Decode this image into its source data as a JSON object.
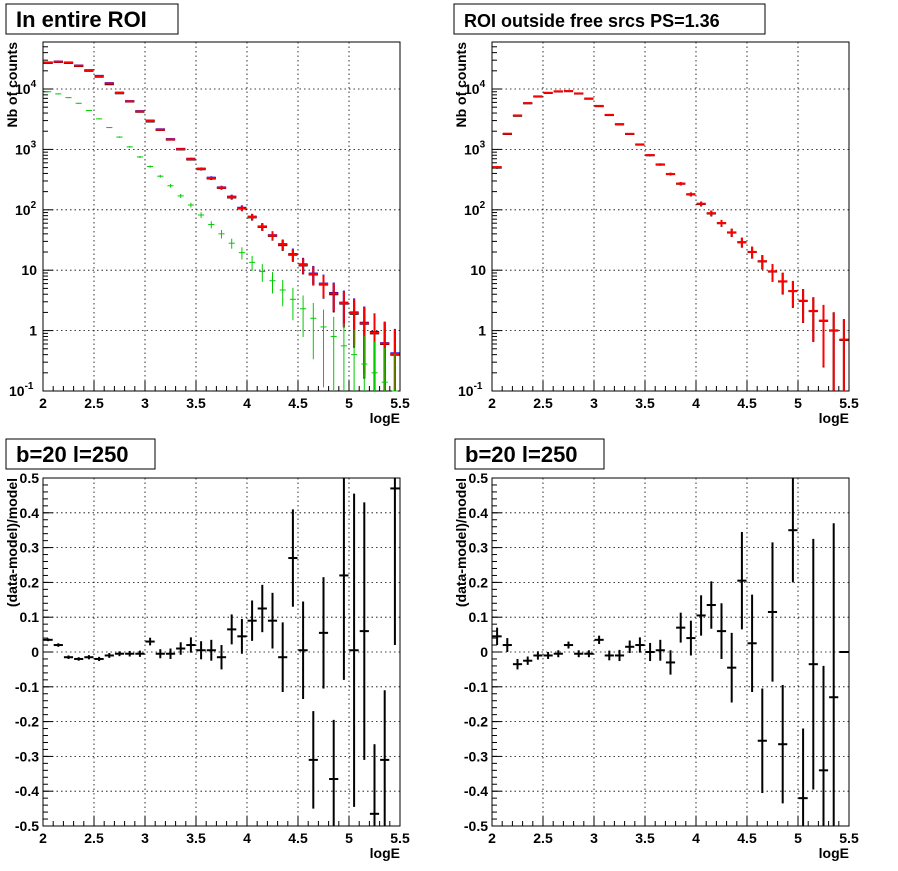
{
  "chart_data": [
    {
      "type": "scatter",
      "title": "In entire ROI",
      "xlabel": "logE",
      "ylabel": "Nb of counts",
      "xlim": [
        2,
        5.5
      ],
      "ylim": [
        0.1,
        60000
      ],
      "yscale": "log",
      "grid": true,
      "x_ticks": [
        "2",
        "2.5",
        "3",
        "3.5",
        "4",
        "4.5",
        "5",
        "5.5"
      ],
      "y_ticks": [
        {
          "base": "10",
          "exp": "-1"
        },
        {
          "base": "1",
          "exp": ""
        },
        {
          "base": "10",
          "exp": ""
        },
        {
          "base": "10",
          "exp": "2"
        },
        {
          "base": "10",
          "exp": "3"
        },
        {
          "base": "10",
          "exp": "4"
        }
      ],
      "series": [
        {
          "color": "#000000",
          "x": [
            2.05,
            2.15,
            2.25,
            2.35,
            2.45,
            2.55,
            2.65,
            2.75,
            2.85,
            2.95,
            3.05,
            3.15,
            3.25,
            3.35,
            3.45,
            3.55,
            3.65,
            3.75,
            3.85,
            3.95,
            4.05,
            4.15,
            4.25,
            4.35,
            4.45,
            4.55,
            4.65,
            4.75,
            4.85,
            4.95,
            5.05,
            5.15,
            5.25,
            5.35,
            5.45
          ],
          "y": [
            27000,
            28000,
            27000,
            24000,
            20000,
            16000,
            12000,
            8500,
            6200,
            4200,
            2900,
            2100,
            1450,
            1000,
            680,
            470,
            330,
            230,
            160,
            105,
            75,
            52,
            37,
            26,
            18,
            12,
            8.5,
            5.8,
            4,
            2.8,
            1.9,
            1.3,
            0.9,
            0.6,
            0.4
          ]
        },
        {
          "color": "#0000ff",
          "x": [
            2.05,
            2.15,
            2.25,
            2.35,
            2.45,
            2.55,
            2.65,
            2.75,
            2.85,
            2.95,
            3.05,
            3.15,
            3.25,
            3.35,
            3.45,
            3.55,
            3.65,
            3.75,
            3.85,
            3.95,
            4.05,
            4.15,
            4.25,
            4.35,
            4.45,
            4.55,
            4.65,
            4.75,
            4.85,
            4.95,
            5.05,
            5.15,
            5.25,
            5.35,
            5.45
          ],
          "y": [
            27500,
            28500,
            27500,
            24500,
            20500,
            16500,
            12500,
            8700,
            6300,
            4300,
            3000,
            2150,
            1480,
            1020,
            700,
            480,
            340,
            235,
            165,
            108,
            77,
            53,
            38,
            27,
            18.5,
            12.5,
            8.8,
            6,
            4.2,
            2.9,
            2,
            1.35,
            0.95,
            0.62,
            0.42
          ]
        },
        {
          "color": "#ff0000",
          "x": [
            2.05,
            2.15,
            2.25,
            2.35,
            2.45,
            2.55,
            2.65,
            2.75,
            2.85,
            2.95,
            3.05,
            3.15,
            3.25,
            3.35,
            3.45,
            3.55,
            3.65,
            3.75,
            3.85,
            3.95,
            4.05,
            4.15,
            4.25,
            4.35,
            4.45,
            4.55,
            4.65,
            4.75,
            4.85,
            4.95,
            5.05,
            5.15,
            5.25,
            5.35,
            5.45
          ],
          "y": [
            27300,
            28300,
            27300,
            24300,
            20300,
            16300,
            12300,
            8600,
            6250,
            4250,
            2950,
            2120,
            1460,
            1010,
            690,
            475,
            335,
            232,
            162,
            106,
            76,
            52.5,
            37.5,
            26.5,
            18.2,
            12.2,
            8.6,
            5.9,
            4.1,
            2.85,
            1.95,
            1.32,
            0.92,
            0.61,
            0.41
          ]
        },
        {
          "color": "#00cc00",
          "x": [
            2.05,
            2.15,
            2.25,
            2.35,
            2.45,
            2.55,
            2.65,
            2.75,
            2.85,
            2.95,
            3.05,
            3.15,
            3.25,
            3.35,
            3.45,
            3.55,
            3.65,
            3.75,
            3.85,
            3.95,
            4.05,
            4.15,
            4.25,
            4.35,
            4.45,
            4.55,
            4.65,
            4.75,
            4.85,
            4.95,
            5.05,
            5.15,
            5.25,
            5.35,
            5.45
          ],
          "y": [
            9000,
            8300,
            7200,
            5800,
            4400,
            3200,
            2300,
            1600,
            1100,
            750,
            520,
            360,
            250,
            170,
            120,
            82,
            57,
            40,
            28,
            19.5,
            13.5,
            9.5,
            6.7,
            4.7,
            3.3,
            2.3,
            1.6,
            1.15,
            0.8,
            0.56,
            0.4,
            0.28,
            0.2,
            0.14,
            0.1
          ]
        }
      ]
    },
    {
      "type": "scatter",
      "title": "ROI outside free srcs PS=1.36",
      "xlabel": "logE",
      "ylabel": "Nb of counts",
      "xlim": [
        2,
        5.5
      ],
      "ylim": [
        0.1,
        60000
      ],
      "yscale": "log",
      "grid": true,
      "x_ticks": [
        "2",
        "2.5",
        "3",
        "3.5",
        "4",
        "4.5",
        "5",
        "5.5"
      ],
      "y_ticks": [
        {
          "base": "10",
          "exp": "-1"
        },
        {
          "base": "1",
          "exp": ""
        },
        {
          "base": "10",
          "exp": ""
        },
        {
          "base": "10",
          "exp": "2"
        },
        {
          "base": "10",
          "exp": "3"
        },
        {
          "base": "10",
          "exp": "4"
        }
      ],
      "series": [
        {
          "color": "#000000",
          "x": [
            2.05,
            2.15,
            2.25,
            2.35,
            2.45,
            2.55,
            2.65,
            2.75,
            2.85,
            2.95,
            3.05,
            3.15,
            3.25,
            3.35,
            3.45,
            3.55,
            3.65,
            3.75,
            3.85,
            3.95,
            4.05,
            4.15,
            4.25,
            4.35,
            4.45,
            4.55,
            4.65,
            4.75,
            4.85,
            4.95,
            5.05,
            5.15,
            5.25,
            5.35,
            5.45
          ],
          "y": [
            500,
            1800,
            3600,
            5800,
            7500,
            8600,
            9100,
            9200,
            8400,
            6900,
            5200,
            3700,
            2600,
            1800,
            1200,
            800,
            560,
            390,
            270,
            180,
            125,
            87,
            60,
            42,
            29,
            20,
            14,
            9.5,
            6.5,
            4.5,
            3.1,
            2.1,
            1.45,
            1,
            0.7
          ]
        },
        {
          "color": "#ff0000",
          "x": [
            2.05,
            2.15,
            2.25,
            2.35,
            2.45,
            2.55,
            2.65,
            2.75,
            2.85,
            2.95,
            3.05,
            3.15,
            3.25,
            3.35,
            3.45,
            3.55,
            3.65,
            3.75,
            3.85,
            3.95,
            4.05,
            4.15,
            4.25,
            4.35,
            4.45,
            4.55,
            4.65,
            4.75,
            4.85,
            4.95,
            5.05,
            5.15,
            5.25,
            5.35,
            5.45
          ],
          "y": [
            510,
            1820,
            3650,
            5850,
            7550,
            8650,
            9150,
            9250,
            8450,
            6950,
            5250,
            3730,
            2620,
            1810,
            1210,
            805,
            565,
            392,
            272,
            181,
            126,
            88,
            60.5,
            42.3,
            29.2,
            20.1,
            14.1,
            9.6,
            6.55,
            4.52,
            3.12,
            2.12,
            1.46,
            1.01,
            0.71
          ]
        }
      ]
    },
    {
      "type": "scatter",
      "title": "b=20 l=250",
      "xlabel": "logE",
      "ylabel": "(data-model)/model",
      "xlim": [
        2,
        5.5
      ],
      "ylim": [
        -0.5,
        0.5
      ],
      "grid": true,
      "x_ticks": [
        "2",
        "2.5",
        "3",
        "3.5",
        "4",
        "4.5",
        "5",
        "5.5"
      ],
      "y_ticks": [
        "-0.5",
        "-0.4",
        "-0.3",
        "-0.2",
        "-0.1",
        "0",
        "0.1",
        "0.2",
        "0.3",
        "0.4",
        "0.5"
      ],
      "series": [
        {
          "color": "#000000",
          "x": [
            2.05,
            2.15,
            2.25,
            2.35,
            2.45,
            2.55,
            2.65,
            2.75,
            2.85,
            2.95,
            3.05,
            3.15,
            3.25,
            3.35,
            3.45,
            3.55,
            3.65,
            3.75,
            3.85,
            3.95,
            4.05,
            4.15,
            4.25,
            4.35,
            4.45,
            4.55,
            4.65,
            4.75,
            4.85,
            4.95,
            5.05,
            5.15,
            5.25,
            5.35,
            5.45
          ],
          "y": [
            0.035,
            0.02,
            -0.015,
            -0.02,
            -0.015,
            -0.02,
            -0.01,
            -0.005,
            -0.005,
            -0.005,
            0.03,
            -0.005,
            -0.005,
            0.01,
            0.02,
            0.005,
            0.005,
            -0.015,
            0.065,
            0.045,
            0.09,
            0.125,
            0.09,
            -0.015,
            0.27,
            0.005,
            -0.31,
            0.055,
            -0.365,
            0.22,
            0.005,
            0.06,
            -0.465,
            -0.31,
            0.47
          ],
          "err": [
            0.004,
            0.005,
            0.005,
            0.005,
            0.006,
            0.006,
            0.007,
            0.007,
            0.008,
            0.009,
            0.011,
            0.013,
            0.015,
            0.018,
            0.022,
            0.026,
            0.03,
            0.035,
            0.043,
            0.05,
            0.058,
            0.068,
            0.08,
            0.1,
            0.14,
            0.14,
            0.14,
            0.16,
            0.17,
            0.3,
            0.45,
            0.37,
            0.2,
            0.2,
            0.45
          ]
        }
      ]
    },
    {
      "type": "scatter",
      "title": "b=20 l=250",
      "xlabel": "logE",
      "ylabel": "(data-model)/model",
      "xlim": [
        2,
        5.5
      ],
      "ylim": [
        -0.5,
        0.5
      ],
      "grid": true,
      "x_ticks": [
        "2",
        "2.5",
        "3",
        "3.5",
        "4",
        "4.5",
        "5",
        "5.5"
      ],
      "y_ticks": [
        "-0.5",
        "-0.4",
        "-0.3",
        "-0.2",
        "-0.1",
        "0",
        "0.1",
        "0.2",
        "0.3",
        "0.4",
        "0.5"
      ],
      "series": [
        {
          "color": "#000000",
          "x": [
            2.05,
            2.15,
            2.25,
            2.35,
            2.45,
            2.55,
            2.65,
            2.75,
            2.85,
            2.95,
            3.05,
            3.15,
            3.25,
            3.35,
            3.45,
            3.55,
            3.65,
            3.75,
            3.85,
            3.95,
            4.05,
            4.15,
            4.25,
            4.35,
            4.45,
            4.55,
            4.65,
            4.75,
            4.85,
            4.95,
            5.05,
            5.15,
            5.25,
            5.35,
            5.45
          ],
          "y": [
            0.045,
            0.02,
            -0.035,
            -0.025,
            -0.01,
            -0.01,
            -0.005,
            0.02,
            -0.005,
            -0.005,
            0.035,
            -0.01,
            -0.01,
            0.015,
            0.02,
            0.0,
            0.005,
            -0.03,
            0.07,
            0.04,
            0.105,
            0.135,
            0.06,
            -0.045,
            0.205,
            0.025,
            -0.255,
            0.115,
            -0.265,
            0.35,
            -0.42,
            -0.035,
            -0.34,
            -0.13,
            0.0
          ],
          "err": [
            0.025,
            0.02,
            0.015,
            0.012,
            0.012,
            0.01,
            0.01,
            0.01,
            0.01,
            0.01,
            0.012,
            0.014,
            0.016,
            0.018,
            0.022,
            0.026,
            0.03,
            0.035,
            0.043,
            0.05,
            0.058,
            0.068,
            0.08,
            0.1,
            0.14,
            0.14,
            0.15,
            0.2,
            0.17,
            0.15,
            0.2,
            0.36,
            0.3,
            0.5,
            0.0
          ]
        }
      ]
    }
  ]
}
